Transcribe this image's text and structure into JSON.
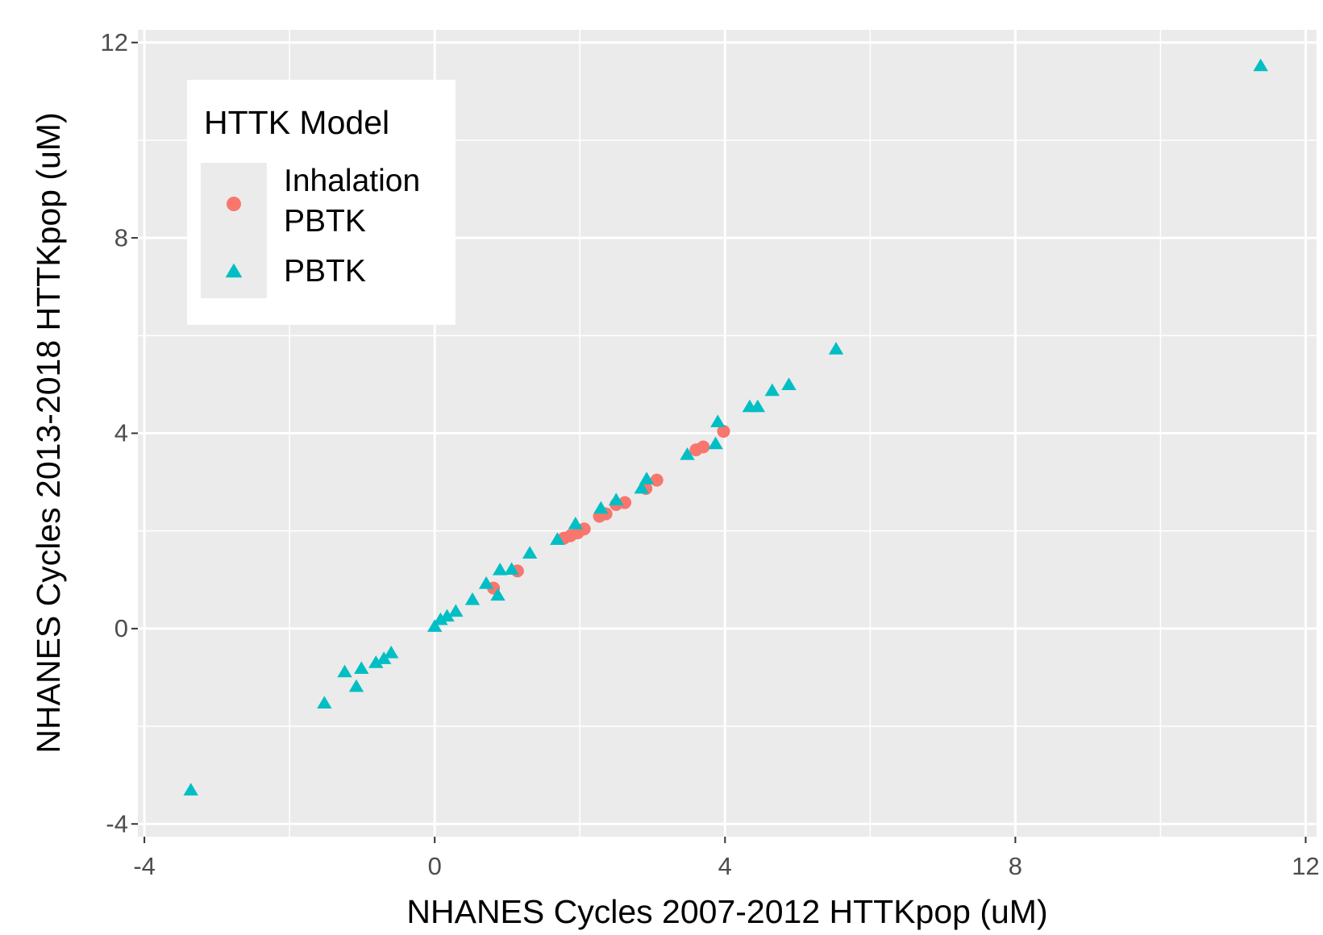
{
  "chart_data": {
    "type": "scatter",
    "x_label": "NHANES Cycles 2007-2012 HTTKpop (uM)",
    "y_label": "NHANES Cycles 2013-2018 HTTKpop (uM)",
    "xlim": [
      -4.09,
      12.15
    ],
    "ylim": [
      -4.26,
      12.26
    ],
    "xticks": [
      -4,
      0,
      4,
      8,
      12
    ],
    "yticks": [
      -4,
      0,
      4,
      8,
      12
    ],
    "minor_xticks": [
      -2,
      2,
      6,
      10
    ],
    "minor_yticks": [
      -2,
      2,
      6,
      10
    ],
    "grid": true,
    "legend_title": "HTTK Model",
    "legend_position": "top-left",
    "series": [
      {
        "name": "Inhalation PBTK",
        "color": "#F8766D",
        "marker": "circle",
        "x": [
          0.81,
          1.14,
          1.78,
          1.87,
          1.97,
          2.06,
          2.27,
          2.36,
          2.5,
          2.62,
          2.91,
          3.06,
          3.6,
          3.7,
          3.98
        ],
        "values": [
          0.83,
          1.18,
          1.85,
          1.9,
          1.96,
          2.04,
          2.3,
          2.35,
          2.54,
          2.58,
          2.87,
          3.04,
          3.66,
          3.72,
          4.04
        ]
      },
      {
        "name": "PBTK",
        "color": "#00BFC4",
        "marker": "triangle",
        "x": [
          -3.36,
          -1.52,
          -1.24,
          -1.08,
          -1.01,
          -0.81,
          -0.7,
          -0.6,
          0.0,
          0.08,
          0.17,
          0.29,
          0.52,
          0.71,
          0.87,
          0.9,
          1.06,
          1.31,
          1.69,
          1.94,
          2.29,
          2.5,
          2.85,
          2.92,
          3.48,
          3.9,
          3.87,
          4.34,
          4.45,
          4.65,
          4.88,
          5.53,
          11.38
        ],
        "values": [
          -3.31,
          -1.53,
          -0.89,
          -1.19,
          -0.82,
          -0.7,
          -0.62,
          -0.5,
          0.04,
          0.18,
          0.25,
          0.35,
          0.59,
          0.92,
          0.68,
          1.2,
          1.21,
          1.54,
          1.82,
          2.14,
          2.46,
          2.63,
          2.87,
          3.06,
          3.56,
          4.23,
          3.78,
          4.54,
          4.54,
          4.87,
          4.99,
          5.72,
          11.52
        ]
      }
    ]
  }
}
